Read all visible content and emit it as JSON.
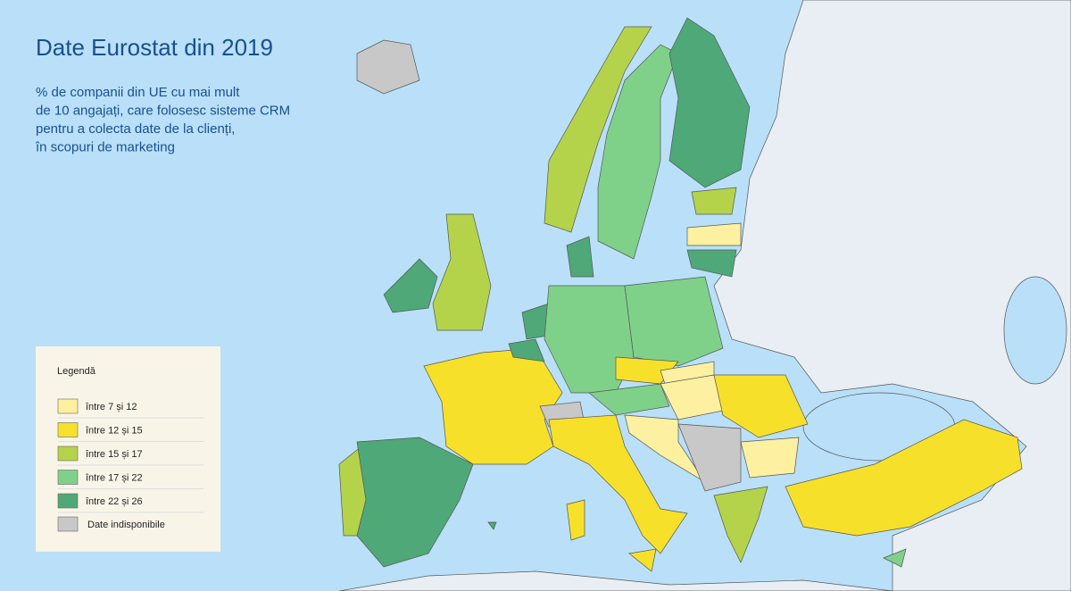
{
  "title": "Date Eurostat din 2019",
  "subtitle": [
    "% de companii din UE cu mai mult",
    "de 10 angajați, care folosesc sisteme CRM",
    "pentru a colecta date de la clienți,",
    "în scopuri de marketing"
  ],
  "legend": {
    "title": "Legendă",
    "items": [
      {
        "label": "între 7 și 12",
        "color": "#fdf0a0"
      },
      {
        "label": "între 12 și 15",
        "color": "#f7e02a"
      },
      {
        "label": "între 15 și 17",
        "color": "#b5d34a"
      },
      {
        "label": "între 17 și 22",
        "color": "#7fd18a"
      },
      {
        "label": "între 22 și 26",
        "color": "#4fa877"
      },
      {
        "label": "Date indisponibile",
        "color": "#c8c8c8"
      }
    ]
  }
}
